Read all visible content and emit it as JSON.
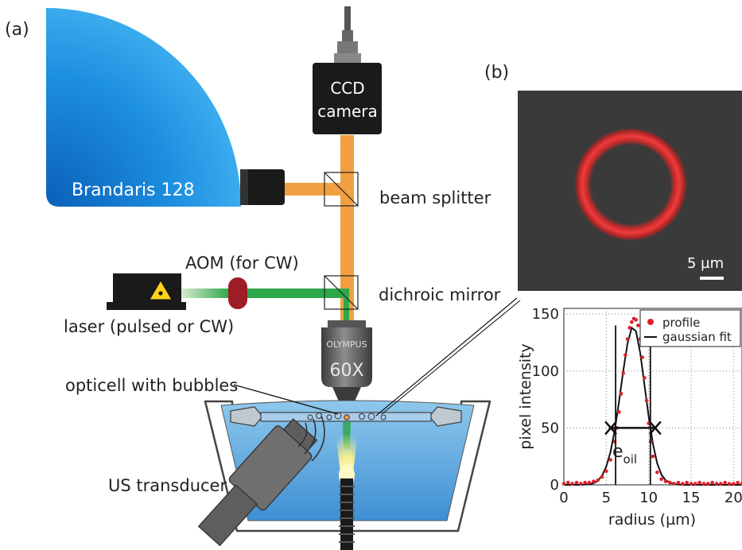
{
  "panel_a": {
    "letter": "(a)",
    "brandaris_label": "Brandaris 128",
    "ccd_line1": "CCD",
    "ccd_line2": "camera",
    "beam_splitter": "beam splitter",
    "dichroic_mirror": "dichroic mirror",
    "aom_label": "AOM (for CW)",
    "laser_label": "laser (pulsed or CW)",
    "objective_brand": "OLYMPUS",
    "objective_mag": "60X",
    "opticell_label": "opticell with bubbles",
    "transducer_label": "US transducer"
  },
  "panel_b": {
    "letter": "(b)",
    "scale_bar": "5 µm"
  },
  "colors": {
    "brandaris_blue": "#1d8fe0",
    "orange_beam": "#f0a040",
    "green_beam": "#2ea84a",
    "aom_red": "#9e1c25",
    "ring_red": "#e23434",
    "microscope_bg": "#3a3a3a"
  },
  "chart_data": {
    "type": "scatter",
    "xlabel": "radius (µm)",
    "ylabel": "pixel intensity",
    "xlim": [
      0,
      21
    ],
    "ylim": [
      0,
      155
    ],
    "x_ticks": [
      "0",
      "5",
      "10",
      "15",
      "20"
    ],
    "y_ticks": [
      "0",
      "50",
      "100",
      "150"
    ],
    "grid": true,
    "legend_position": "top-right",
    "annotation_main": "e",
    "annotation_sub": "oil",
    "series": [
      {
        "name": "profile",
        "style": "points",
        "color": "#e0202a",
        "x": [
          0,
          0.5,
          1,
          1.5,
          2,
          2.5,
          3,
          3.5,
          4,
          4.5,
          5,
          5.5,
          6,
          6.25,
          6.5,
          6.75,
          7,
          7.25,
          7.5,
          7.75,
          8,
          8.25,
          8.5,
          8.75,
          9,
          9.25,
          9.5,
          9.75,
          10,
          10.25,
          10.5,
          11,
          11.5,
          12,
          12.5,
          13,
          13.5,
          14,
          14.5,
          15,
          15.5,
          16,
          16.5,
          17,
          17.5,
          18,
          18.5,
          19,
          19.5,
          20,
          20.5,
          21
        ],
        "y": [
          1,
          2,
          1,
          2,
          1,
          2,
          2,
          3,
          4,
          7,
          12,
          22,
          38,
          50,
          64,
          80,
          98,
          114,
          128,
          138,
          143,
          146,
          145,
          140,
          128,
          112,
          94,
          74,
          54,
          38,
          25,
          11,
          5,
          3,
          2,
          1,
          2,
          1,
          2,
          1,
          1,
          2,
          1,
          1,
          2,
          1,
          1,
          2,
          1,
          1,
          2,
          1
        ]
      },
      {
        "name": "gaussian fit",
        "style": "line",
        "color": "#111111",
        "x": [
          0,
          1,
          2,
          3,
          3.5,
          4,
          4.5,
          5,
          5.5,
          6,
          6.5,
          7,
          7.5,
          8,
          8.5,
          9,
          9.5,
          10,
          10.5,
          11,
          11.5,
          12,
          13,
          14,
          16,
          18,
          21
        ],
        "y": [
          0,
          0,
          0,
          0.5,
          1.4,
          3.5,
          8,
          16,
          29,
          48,
          73,
          100,
          124,
          138,
          135,
          116,
          88,
          60,
          36,
          19,
          9,
          4,
          0.5,
          0,
          0,
          0,
          0
        ]
      }
    ],
    "fwhm_markers": {
      "x_left": 6.1,
      "x_right": 10.2,
      "y": 50
    }
  }
}
